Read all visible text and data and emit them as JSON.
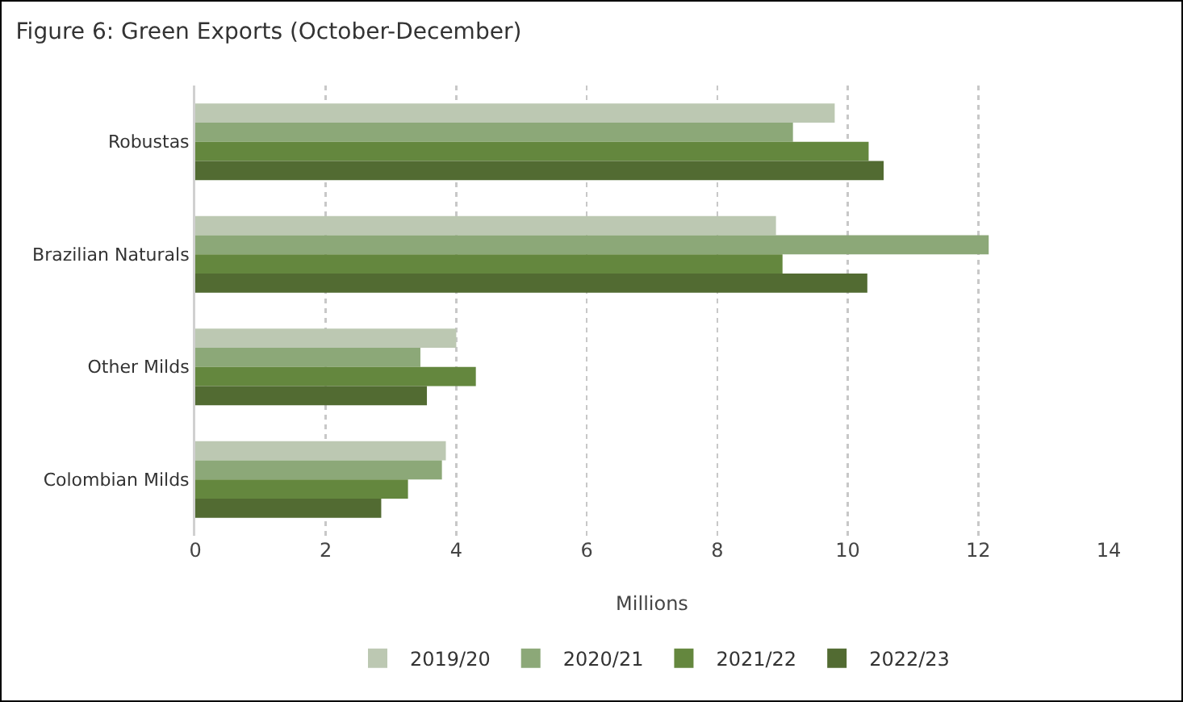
{
  "chart_data": {
    "type": "bar",
    "orientation": "horizontal",
    "title": "Figure 6: Green Exports (October-December)",
    "xlabel": "Millions",
    "categories": [
      "Robustas",
      "Brazilian Naturals",
      "Other Milds",
      "Colombian Milds"
    ],
    "series": [
      {
        "name": "2019/20",
        "color": "#bcc8b2",
        "values": [
          9.8,
          8.9,
          4.0,
          3.84
        ]
      },
      {
        "name": "2020/21",
        "color": "#8ca878",
        "values": [
          9.16,
          12.16,
          3.45,
          3.78
        ]
      },
      {
        "name": "2021/22",
        "color": "#64873e",
        "values": [
          10.32,
          9.0,
          4.3,
          3.26
        ]
      },
      {
        "name": "2022/23",
        "color": "#526b32",
        "values": [
          10.55,
          10.3,
          3.55,
          2.85
        ]
      }
    ],
    "xlim": [
      0,
      14
    ],
    "xticks": [
      0,
      2,
      4,
      6,
      8,
      10,
      12,
      14
    ],
    "grid": "x",
    "legend": "bottom"
  }
}
